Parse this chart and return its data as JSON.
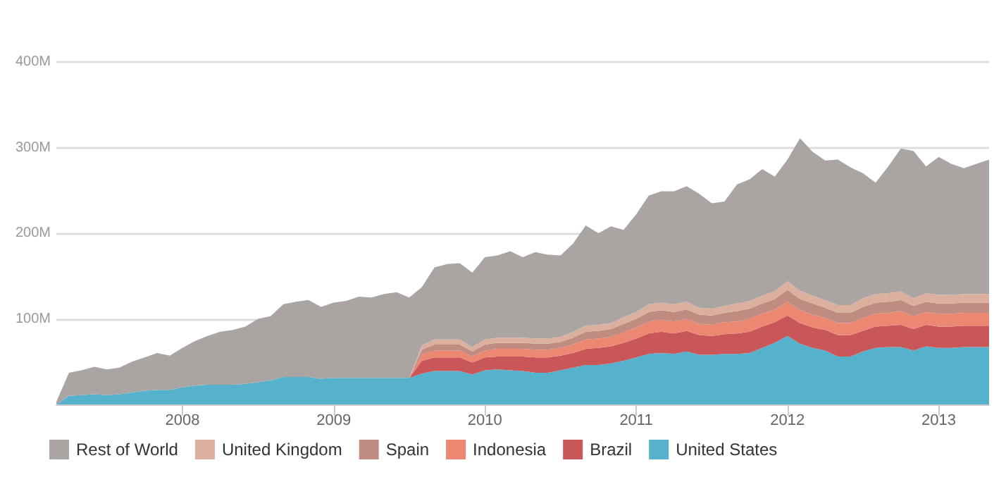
{
  "chart_data": {
    "type": "area",
    "stacked": true,
    "x": [
      "2007-03",
      "2007-04",
      "2007-05",
      "2007-06",
      "2007-07",
      "2007-08",
      "2007-09",
      "2007-10",
      "2007-11",
      "2007-12",
      "2008-01",
      "2008-02",
      "2008-03",
      "2008-04",
      "2008-05",
      "2008-06",
      "2008-07",
      "2008-08",
      "2008-09",
      "2008-10",
      "2008-11",
      "2008-12",
      "2009-01",
      "2009-02",
      "2009-03",
      "2009-04",
      "2009-05",
      "2009-06",
      "2009-07",
      "2009-08",
      "2009-09",
      "2009-10",
      "2009-11",
      "2009-12",
      "2010-01",
      "2010-02",
      "2010-03",
      "2010-04",
      "2010-05",
      "2010-06",
      "2010-07",
      "2010-08",
      "2010-09",
      "2010-10",
      "2010-11",
      "2010-12",
      "2011-01",
      "2011-02",
      "2011-03",
      "2011-04",
      "2011-05",
      "2011-06",
      "2011-07",
      "2011-08",
      "2011-09",
      "2011-10",
      "2011-11",
      "2011-12",
      "2012-01",
      "2012-02",
      "2012-03",
      "2012-04",
      "2012-05",
      "2012-06",
      "2012-07",
      "2012-08",
      "2012-09",
      "2012-10",
      "2012-11",
      "2012-12",
      "2013-01",
      "2013-02",
      "2013-03",
      "2013-04",
      "2013-05"
    ],
    "series": [
      {
        "name": "United States",
        "color": "#56b1cd",
        "values": [
          0,
          10,
          11,
          12,
          11,
          12,
          14,
          16,
          17,
          17,
          20,
          22,
          23,
          23,
          23,
          24,
          26,
          28,
          32,
          32,
          32,
          30,
          31,
          31,
          31,
          31,
          31,
          31,
          31,
          36,
          39,
          39,
          39,
          35,
          40,
          41,
          40,
          39,
          37,
          37,
          40,
          43,
          46,
          46,
          48,
          51,
          55,
          59,
          60,
          59,
          62,
          58,
          58,
          59,
          59,
          60,
          66,
          72,
          80,
          71,
          66,
          63,
          56,
          56,
          62,
          66,
          67,
          67,
          63,
          68,
          66,
          66,
          67,
          67,
          67
        ]
      },
      {
        "name": "Brazil",
        "color": "#c9575a",
        "values": [
          0,
          0,
          0,
          0,
          0,
          0,
          0,
          0,
          0,
          0,
          0,
          0,
          0,
          0,
          0,
          0,
          0,
          0,
          0,
          0,
          0,
          0,
          0,
          0,
          0,
          0,
          0,
          0,
          0,
          15,
          16,
          16,
          16,
          14,
          15,
          15,
          16,
          17,
          18,
          18,
          17,
          17,
          19,
          20,
          20,
          21,
          22,
          24,
          25,
          24,
          24,
          23,
          22,
          23,
          24,
          25,
          25,
          24,
          24,
          24,
          24,
          24,
          25,
          25,
          24,
          25,
          25,
          26,
          25,
          25,
          25,
          25,
          25,
          25,
          25
        ]
      },
      {
        "name": "Indonesia",
        "color": "#ec8872",
        "values": [
          0,
          0,
          0,
          0,
          0,
          0,
          0,
          0,
          0,
          0,
          0,
          0,
          0,
          0,
          0,
          0,
          0,
          0,
          0,
          0,
          0,
          0,
          0,
          0,
          0,
          0,
          0,
          0,
          0,
          7,
          8,
          8,
          8,
          7,
          8,
          9,
          9,
          9,
          9,
          9,
          9,
          10,
          11,
          11,
          11,
          12,
          13,
          14,
          14,
          14,
          14,
          13,
          13,
          14,
          14,
          15,
          15,
          15,
          16,
          15,
          15,
          14,
          14,
          14,
          15,
          15,
          15,
          16,
          15,
          15,
          15,
          15,
          15,
          15,
          15
        ]
      },
      {
        "name": "Spain",
        "color": "#c08b80",
        "values": [
          0,
          0,
          0,
          0,
          0,
          0,
          0,
          0,
          0,
          0,
          0,
          0,
          0,
          0,
          0,
          0,
          0,
          0,
          0,
          0,
          0,
          0,
          0,
          0,
          0,
          0,
          0,
          0,
          0,
          6,
          7,
          7,
          7,
          6,
          7,
          7,
          7,
          7,
          7,
          7,
          7,
          8,
          9,
          9,
          9,
          10,
          10,
          11,
          11,
          11,
          11,
          11,
          11,
          11,
          12,
          12,
          12,
          12,
          14,
          13,
          13,
          12,
          12,
          12,
          13,
          13,
          13,
          13,
          12,
          12,
          12,
          12,
          12,
          12,
          12
        ]
      },
      {
        "name": "United Kingdom",
        "color": "#dbb09f",
        "values": [
          0,
          0,
          0,
          0,
          0,
          0,
          0,
          0,
          0,
          0,
          0,
          0,
          0,
          0,
          0,
          0,
          0,
          0,
          0,
          0,
          0,
          0,
          0,
          0,
          0,
          0,
          0,
          0,
          0,
          5,
          6,
          6,
          6,
          5,
          6,
          6,
          6,
          6,
          6,
          6,
          6,
          7,
          7,
          7,
          7,
          8,
          8,
          9,
          9,
          9,
          9,
          8,
          8,
          8,
          9,
          9,
          9,
          9,
          10,
          10,
          9,
          9,
          9,
          9,
          10,
          10,
          10,
          10,
          9,
          10,
          10,
          10,
          10,
          10,
          10
        ]
      },
      {
        "name": "Rest of World",
        "color": "#aaa5a3",
        "values": [
          3,
          27,
          29,
          32,
          30,
          31,
          36,
          39,
          43,
          40,
          46,
          52,
          57,
          62,
          64,
          67,
          74,
          75,
          85,
          88,
          90,
          84,
          88,
          90,
          95,
          94,
          98,
          100,
          94,
          68,
          84,
          88,
          89,
          87,
          96,
          96,
          101,
          94,
          101,
          98,
          95,
          103,
          117,
          107,
          113,
          102,
          114,
          127,
          130,
          132,
          135,
          133,
          123,
          122,
          139,
          142,
          148,
          134,
          142,
          178,
          168,
          163,
          170,
          161,
          146,
          130,
          148,
          167,
          172,
          148,
          161,
          153,
          147,
          152,
          157
        ]
      }
    ],
    "xlim": [
      "2007-03",
      "2013-05"
    ],
    "xticks": [
      "2008",
      "2009",
      "2010",
      "2011",
      "2012",
      "2013"
    ],
    "ylim": [
      0,
      400
    ],
    "yticks": [
      {
        "value": 0,
        "label": null
      },
      {
        "value": 100,
        "label": "100M"
      },
      {
        "value": 200,
        "label": "200M"
      },
      {
        "value": 300,
        "label": "300M"
      },
      {
        "value": 400,
        "label": "400M"
      }
    ],
    "grid": "y",
    "legend": "bottom left"
  }
}
